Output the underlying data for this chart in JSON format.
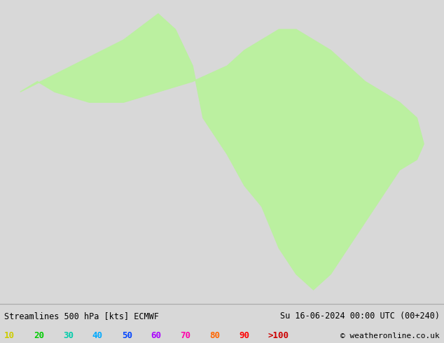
{
  "title_left": "Streamlines 500 hPa [kts] ECMWF",
  "title_right": "Su 16-06-2024 00:00 UTC (00+240)",
  "copyright": "© weatheronline.co.uk",
  "legend_values": [
    "10",
    "20",
    "30",
    "40",
    "50",
    "60",
    "70",
    "80",
    "90",
    ">100"
  ],
  "legend_colors": [
    "#cccc00",
    "#00cc00",
    "#00ccaa",
    "#00aaff",
    "#0044ff",
    "#aa00ff",
    "#ff00aa",
    "#ff6600",
    "#ff0000",
    "#cc0000"
  ],
  "background_color": "#d8d8d8",
  "land_color": "#bbf0a0",
  "ocean_color": "#d8d8d8",
  "border_color": "#888888",
  "fig_width": 6.34,
  "fig_height": 4.9,
  "dpi": 100,
  "bottom_bar_color": "#e8e8e8",
  "title_fontsize": 8.5,
  "legend_fontsize": 9,
  "copyright_fontsize": 8
}
